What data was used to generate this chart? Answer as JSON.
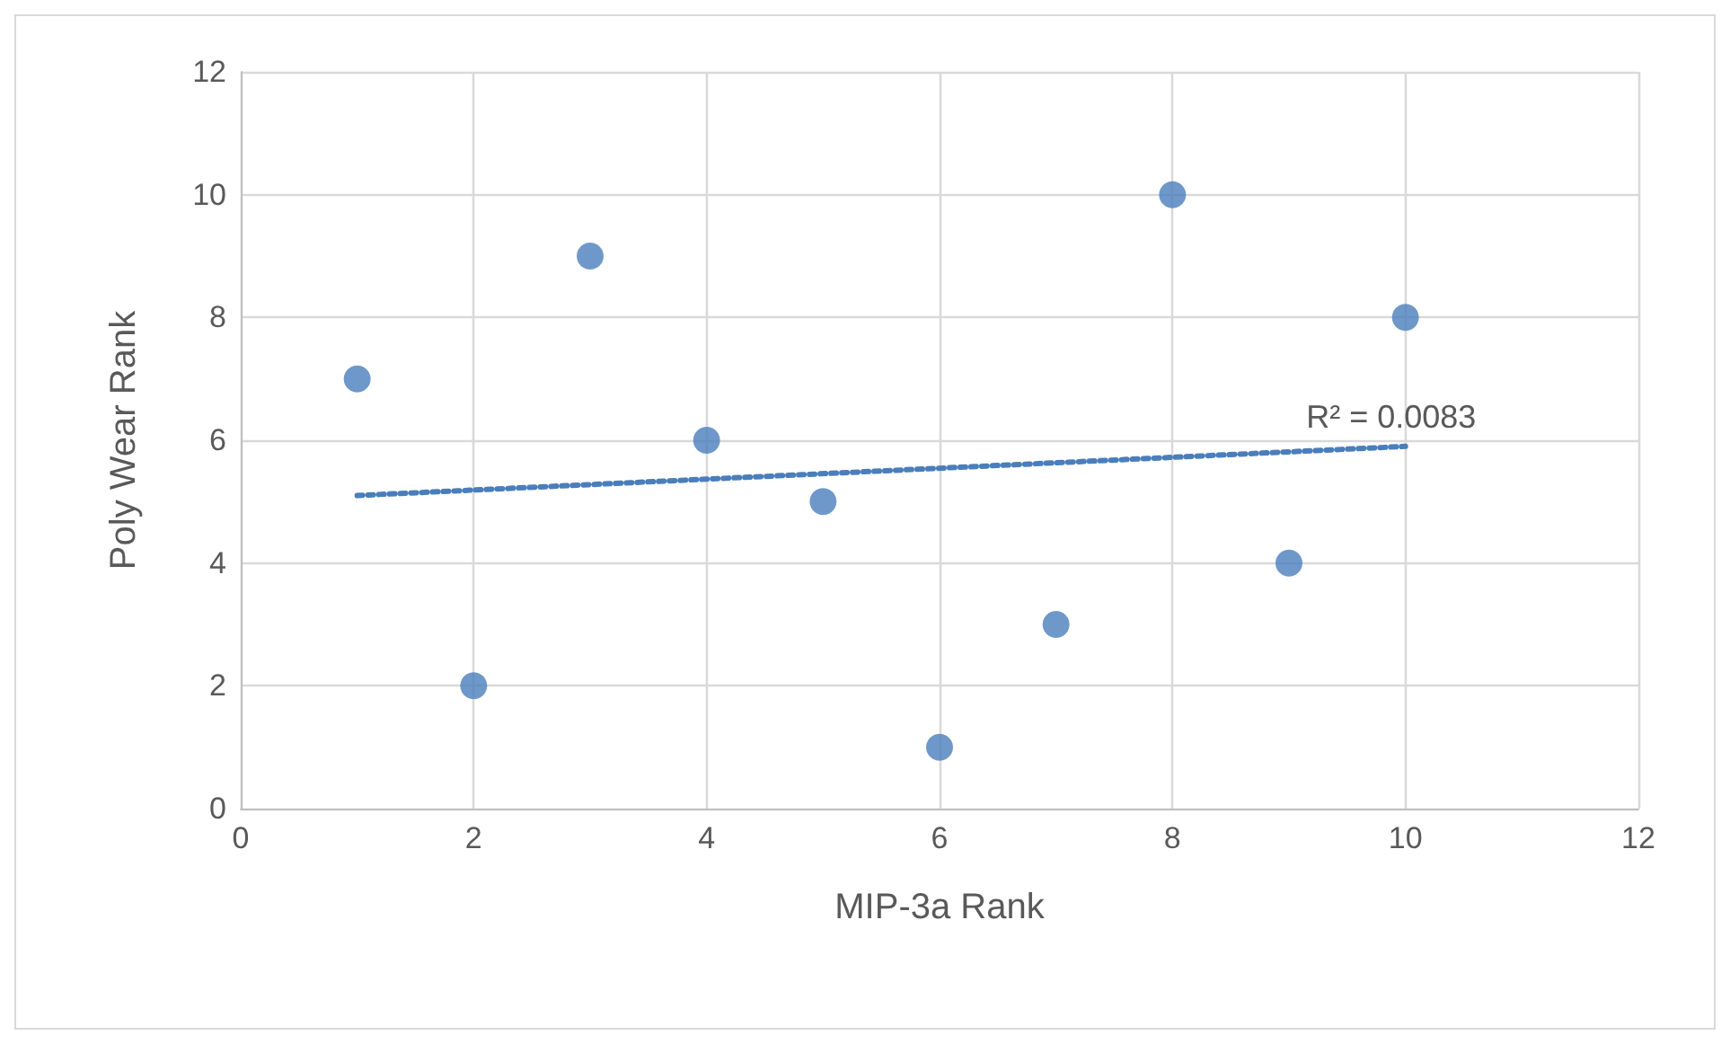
{
  "chart_data": {
    "type": "scatter",
    "xlabel": "MIP-3a Rank",
    "ylabel": "Poly Wear Rank",
    "series": [
      {
        "color": "#4a7ebb",
        "x": [
          1,
          2,
          3,
          4,
          5,
          6,
          7,
          8,
          9,
          10
        ],
        "values": [
          7,
          2,
          9,
          6,
          5,
          1,
          3,
          10,
          4,
          8
        ],
        "marker": "circle"
      },
      {
        "type": "line",
        "color": "#4a7ebb",
        "x": [
          1,
          10
        ],
        "values": [
          5.1,
          5.9
        ],
        "line_style": "dotted",
        "marker": "none"
      }
    ],
    "annotations": [
      "R² = 0.0083"
    ],
    "xlim": [
      0,
      12
    ],
    "xticks": [
      0,
      2,
      4,
      6,
      8,
      10,
      12
    ],
    "ylim": [
      0,
      12
    ],
    "yticks": [
      0,
      2,
      4,
      6,
      8,
      10,
      12
    ],
    "grid": true
  }
}
